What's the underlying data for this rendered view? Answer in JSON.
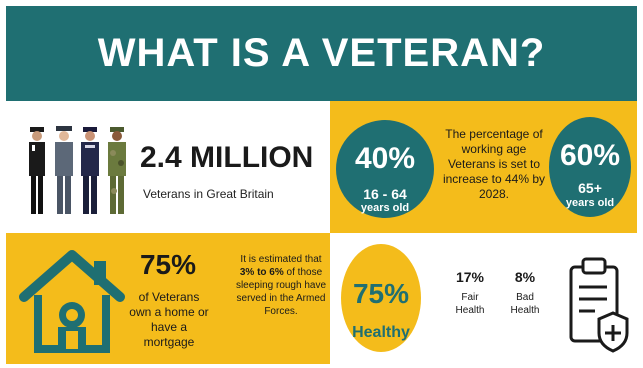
{
  "header": {
    "title": "WHAT IS A VETERAN?"
  },
  "population": {
    "number": "2.4 MILLION",
    "caption": "Veterans in Great Britain"
  },
  "working_age": {
    "left_circle": {
      "percent": "40%",
      "range": "16 - 64",
      "unit": "years old"
    },
    "description": "The percentage of working age Veterans is set to increase to 44% by 2028.",
    "right_circle": {
      "percent": "60%",
      "range": "65+",
      "unit": "years old"
    }
  },
  "home": {
    "percent": "75%",
    "caption": "of Veterans own a home or have a mortgage",
    "note_prefix": "It is estimated that ",
    "note_highlight": "3% to 6%",
    "note_suffix": " of those sleeping rough have served in the Armed Forces."
  },
  "health": {
    "healthy": {
      "percent": "75%",
      "label": "Healthy"
    },
    "fair": {
      "percent": "17%",
      "label": "Fair Health"
    },
    "bad": {
      "percent": "8%",
      "label": "Bad Health"
    }
  },
  "icons": [
    "soldiers-icon",
    "house-icon",
    "clipboard-health-icon"
  ],
  "colors": {
    "teal": "#1f6f72",
    "yellow": "#f4bc1b",
    "text": "#1a1a1a",
    "white": "#ffffff"
  }
}
